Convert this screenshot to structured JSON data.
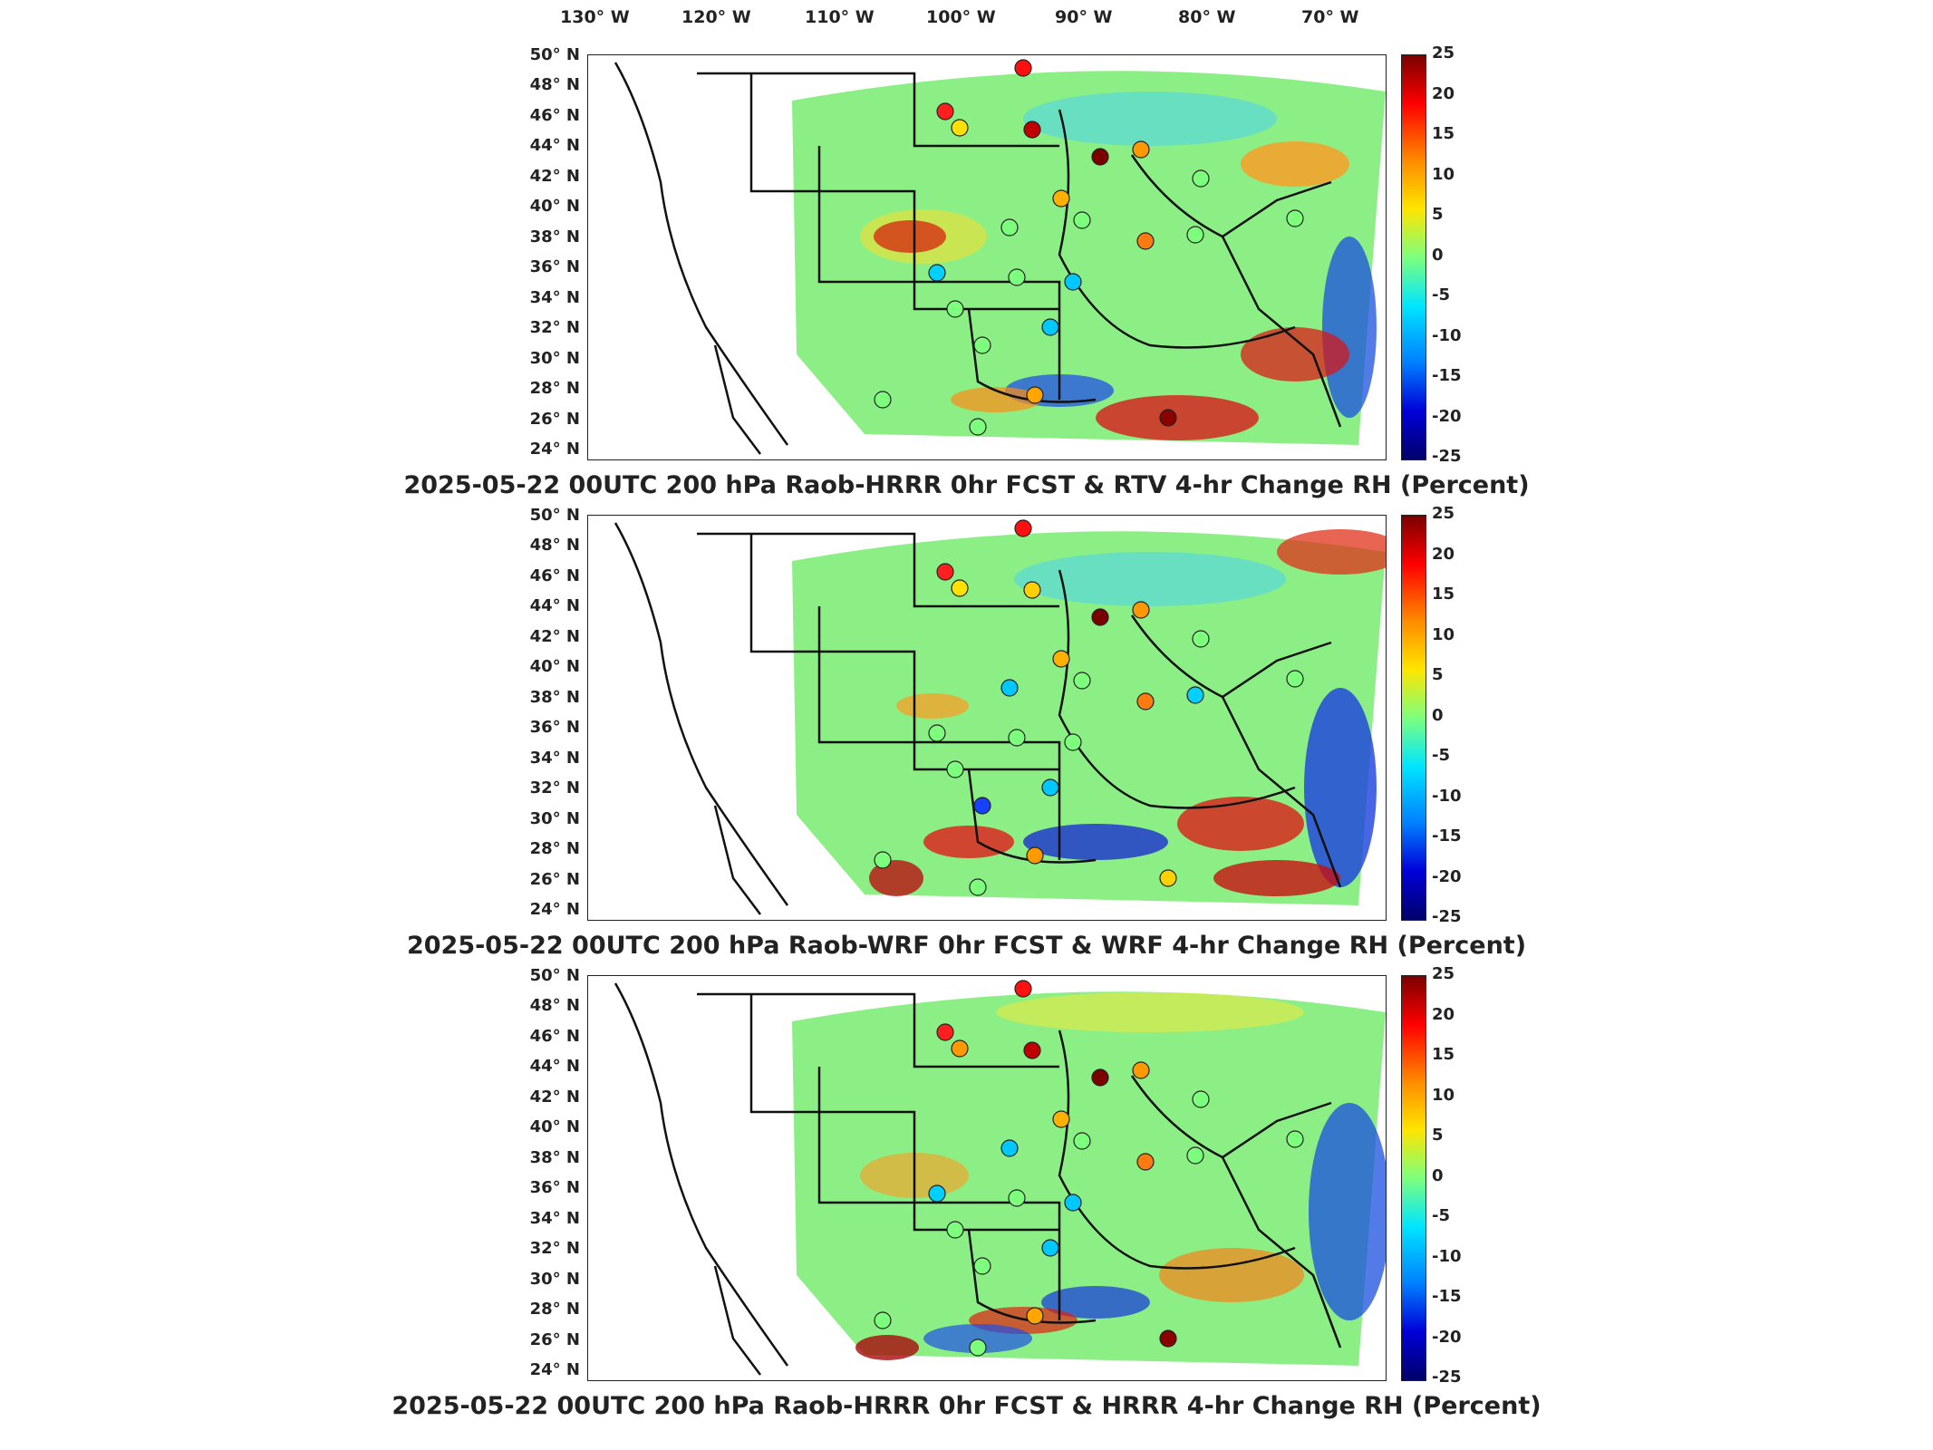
{
  "longitude_labels": [
    "130° W",
    "120° W",
    "110° W",
    "100° W",
    "90° W",
    "80° W",
    "70° W"
  ],
  "latitude_labels": [
    "50° N",
    "48° N",
    "46° N",
    "44° N",
    "42° N",
    "40° N",
    "38° N",
    "36° N",
    "34° N",
    "32° N",
    "30° N",
    "28° N",
    "26° N",
    "24° N"
  ],
  "colorbar": {
    "ticks": [
      "25",
      "20",
      "15",
      "10",
      "5",
      "0",
      "-5",
      "-10",
      "-15",
      "-20",
      "-25"
    ],
    "colormap": [
      "#7a0000",
      "#ff0000",
      "#ff8a00",
      "#ffe500",
      "#7dff7d",
      "#00e5ff",
      "#0080ff",
      "#0000d8",
      "#00006a"
    ]
  },
  "panels": [
    {
      "title": "2025-05-22 00UTC 200 hPa Raob-HRRR 0hr FCST & RTV 4-hr Change RH (Percent)"
    },
    {
      "title": "2025-05-22 00UTC 200 hPa Raob-WRF 0hr FCST & WRF 4-hr Change RH (Percent)"
    },
    {
      "title": "2025-05-22 00UTC 200 hPa Raob-HRRR 0hr FCST & HRRR 4-hr Change RH (Percent)"
    }
  ],
  "station_sets": [
    [
      "#ff1f1f",
      "#ffe000",
      "#c00000",
      "#ff1010",
      "#7a0000",
      "#ff9900",
      "#7dff7d",
      "#7dff7d",
      "#ffb000",
      "#7dff7d",
      "#ff7a10",
      "#7dff7d",
      "#00c8ff",
      "#7dff7d",
      "#7dff7d",
      "#7dff7d",
      "#00d0ff",
      "#7dff7d",
      "#00c8ff",
      "#7dff7d",
      "#ffa500",
      "#8a0000",
      "#7dff7d"
    ],
    [
      "#ff1f1f",
      "#ffe000",
      "#ffd000",
      "#ff1010",
      "#7a0000",
      "#ff9900",
      "#7dff7d",
      "#00d0ff",
      "#ffb000",
      "#7dff7d",
      "#ff7a10",
      "#7dff7d",
      "#7dff7d",
      "#7dff7d",
      "#00c8ff",
      "#7dff7d",
      "#7dff7d",
      "#1840ff",
      "#00c8ff",
      "#7dff7d",
      "#ff9900",
      "#ffd000",
      "#7dff7d"
    ],
    [
      "#ff1f1f",
      "#ff9900",
      "#c00000",
      "#ff1010",
      "#7a0000",
      "#ff9900",
      "#7dff7d",
      "#7dff7d",
      "#ffb000",
      "#7dff7d",
      "#ff7a10",
      "#7dff7d",
      "#00c8ff",
      "#7dff7d",
      "#00c8ff",
      "#7dff7d",
      "#00d0ff",
      "#7dff7d",
      "#00c8ff",
      "#7dff7d",
      "#ffa500",
      "#8a0000",
      "#7dff7d"
    ]
  ]
}
